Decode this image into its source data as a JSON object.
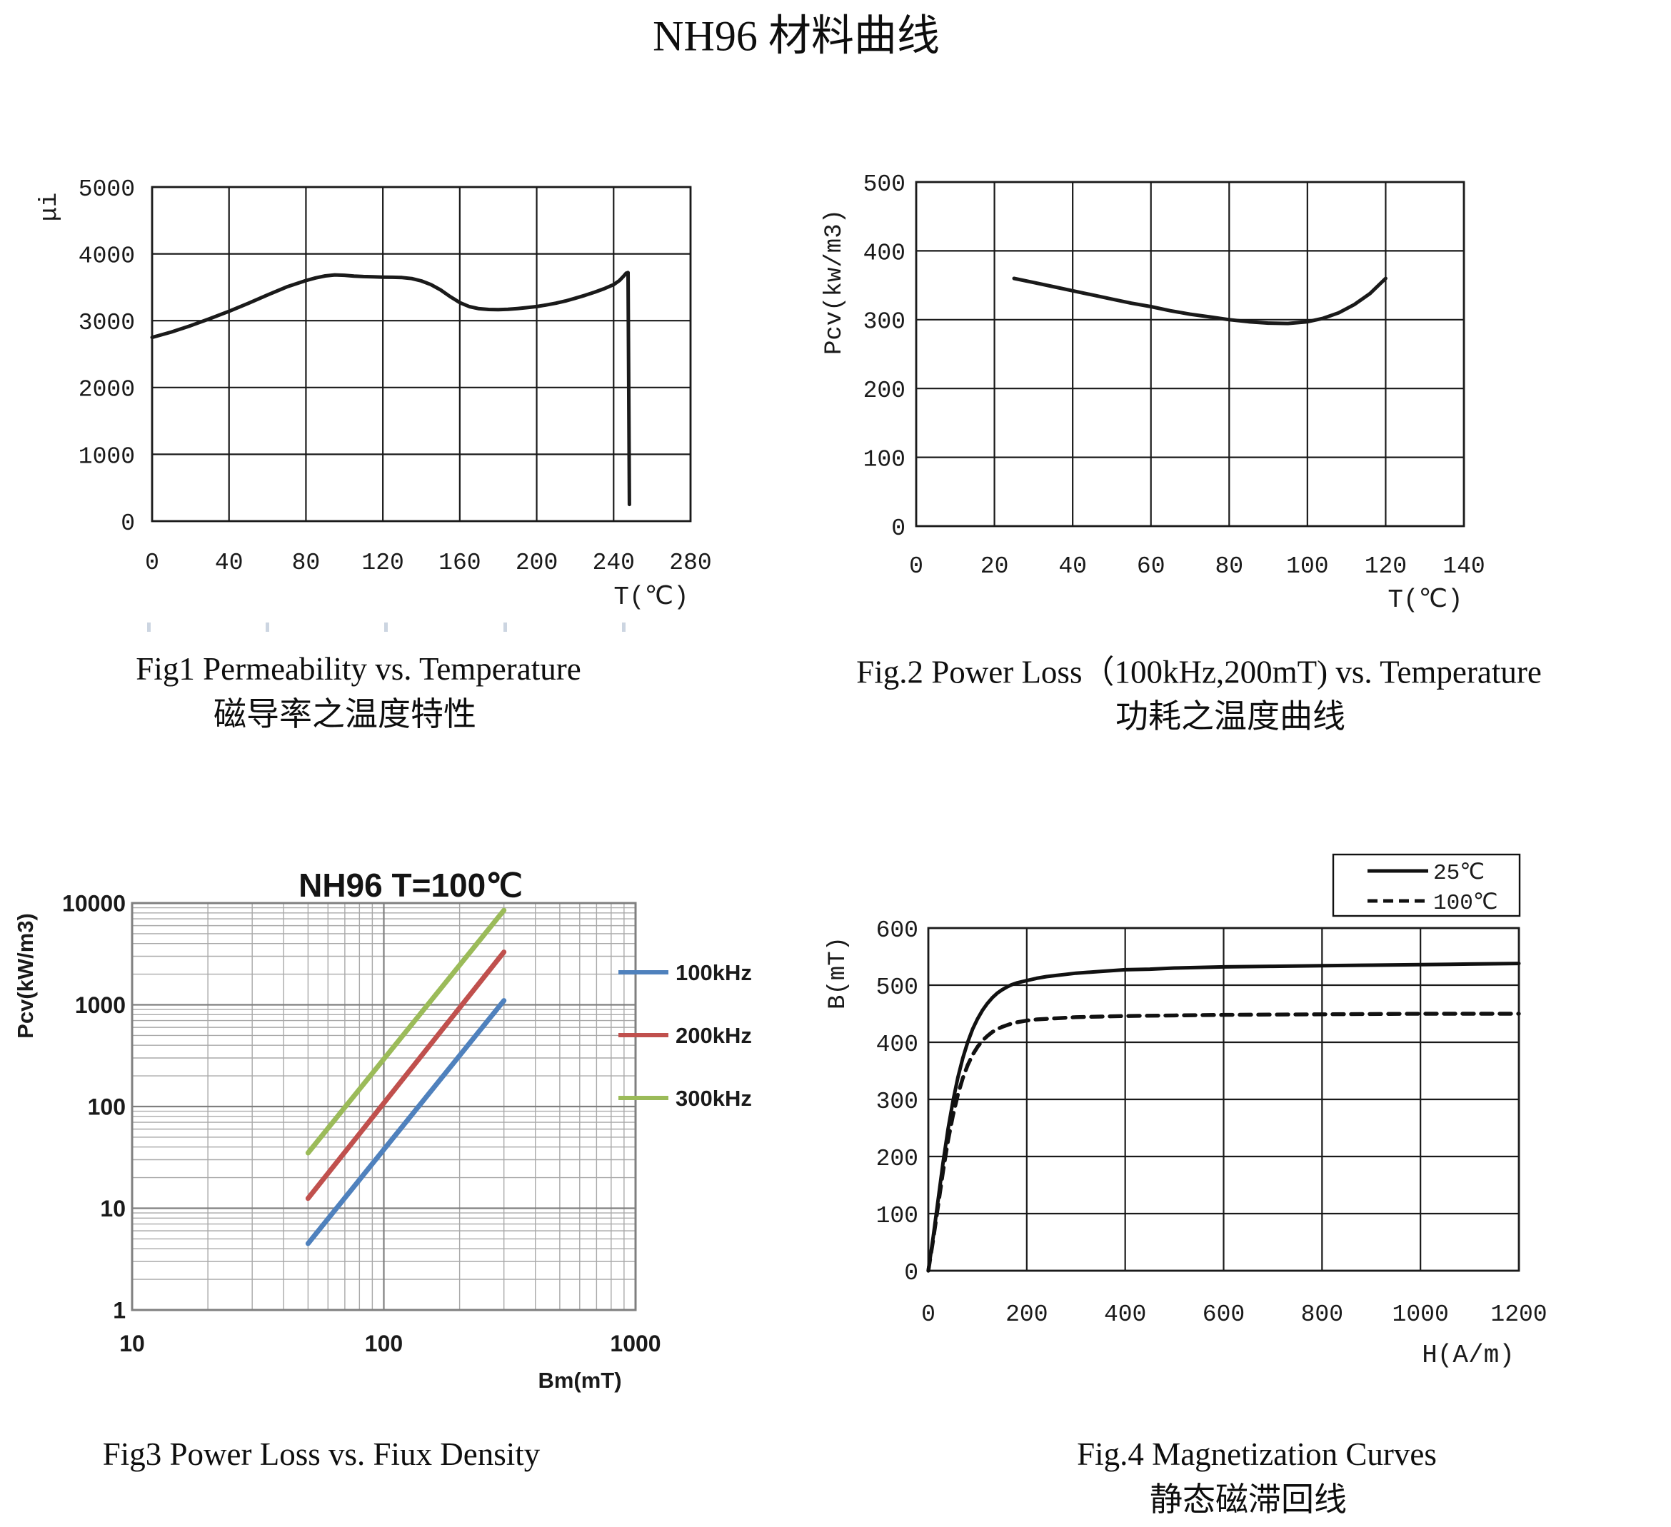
{
  "page_title": "NH96 材料曲线",
  "chart_data": [
    {
      "id": "fig1",
      "type": "line",
      "caption": "Fig1 Permeability vs. Temperature",
      "caption_zh": "磁导率之温度特性",
      "xlabel": "T(℃)",
      "ylabel": "μi",
      "xlim": [
        0,
        280
      ],
      "ylim": [
        0,
        5000
      ],
      "xticks": [
        0,
        40,
        80,
        120,
        160,
        200,
        240,
        280
      ],
      "yticks": [
        0,
        1000,
        2000,
        3000,
        4000,
        5000
      ],
      "grid": true,
      "series": [
        {
          "name": "permeability",
          "color": "#1a1a1a",
          "points": [
            [
              0,
              2750
            ],
            [
              10,
              2830
            ],
            [
              20,
              2925
            ],
            [
              30,
              3030
            ],
            [
              40,
              3140
            ],
            [
              50,
              3260
            ],
            [
              60,
              3385
            ],
            [
              70,
              3505
            ],
            [
              80,
              3600
            ],
            [
              85,
              3640
            ],
            [
              90,
              3670
            ],
            [
              95,
              3685
            ],
            [
              100,
              3680
            ],
            [
              105,
              3668
            ],
            [
              110,
              3660
            ],
            [
              115,
              3656
            ],
            [
              120,
              3652
            ],
            [
              125,
              3650
            ],
            [
              130,
              3645
            ],
            [
              135,
              3630
            ],
            [
              140,
              3595
            ],
            [
              145,
              3540
            ],
            [
              150,
              3460
            ],
            [
              155,
              3360
            ],
            [
              160,
              3270
            ],
            [
              165,
              3210
            ],
            [
              170,
              3180
            ],
            [
              175,
              3168
            ],
            [
              180,
              3165
            ],
            [
              185,
              3170
            ],
            [
              190,
              3182
            ],
            [
              195,
              3195
            ],
            [
              200,
              3212
            ],
            [
              205,
              3235
            ],
            [
              210,
              3262
            ],
            [
              215,
              3295
            ],
            [
              220,
              3335
            ],
            [
              225,
              3378
            ],
            [
              230,
              3425
            ],
            [
              235,
              3478
            ],
            [
              240,
              3540
            ],
            [
              243,
              3600
            ],
            [
              245,
              3660
            ],
            [
              246.5,
              3710
            ],
            [
              247.5,
              3720
            ],
            [
              248.2,
              250
            ]
          ]
        }
      ]
    },
    {
      "id": "fig2",
      "type": "line",
      "caption": "Fig.2 Power Loss（100kHz,200mT) vs. Temperature",
      "caption_zh": "功耗之温度曲线",
      "xlabel": "T(℃)",
      "ylabel": "Pcv(kw/m3)",
      "xlim": [
        0,
        140
      ],
      "ylim": [
        0,
        500
      ],
      "xticks": [
        0,
        20,
        40,
        60,
        80,
        100,
        120,
        140
      ],
      "yticks": [
        0,
        100,
        200,
        300,
        400,
        500
      ],
      "grid": true,
      "series": [
        {
          "name": "power-loss",
          "color": "#1a1a1a",
          "points": [
            [
              25,
              360
            ],
            [
              30,
              354
            ],
            [
              35,
              348
            ],
            [
              40,
              342
            ],
            [
              45,
              336
            ],
            [
              50,
              330
            ],
            [
              55,
              324
            ],
            [
              60,
              319
            ],
            [
              65,
              313
            ],
            [
              70,
              308
            ],
            [
              75,
              304
            ],
            [
              80,
              300
            ],
            [
              85,
              297
            ],
            [
              90,
              295
            ],
            [
              95,
              294.5
            ],
            [
              100,
              297
            ],
            [
              104,
              302
            ],
            [
              108,
              310
            ],
            [
              112,
              322
            ],
            [
              116,
              338
            ],
            [
              120,
              360
            ]
          ]
        }
      ]
    },
    {
      "id": "fig3",
      "type": "line",
      "xscale": "log",
      "yscale": "log",
      "title": "NH96 T=100℃",
      "caption": "Fig3 Power Loss vs. Fiux Density",
      "xlabel": "Bm(mT)",
      "ylabel": "Pcv(kW/m3)",
      "xlim": [
        10,
        1000
      ],
      "ylim": [
        1,
        10000
      ],
      "xticks": [
        10,
        100,
        1000
      ],
      "yticks": [
        1,
        10,
        100,
        1000,
        10000
      ],
      "grid": true,
      "legend_position": "right",
      "series": [
        {
          "name": "100kHz",
          "color": "#4f81bd",
          "points": [
            [
              50,
              4.5
            ],
            [
              300,
              1100
            ]
          ]
        },
        {
          "name": "200kHz",
          "color": "#c0504d",
          "points": [
            [
              50,
              12.5
            ],
            [
              300,
              3300
            ]
          ]
        },
        {
          "name": "300kHz",
          "color": "#9bbb59",
          "points": [
            [
              50,
              35
            ],
            [
              300,
              8500
            ]
          ]
        }
      ]
    },
    {
      "id": "fig4",
      "type": "line",
      "caption": "Fig.4 Magnetization Curves",
      "caption_zh": "静态磁滞回线",
      "xlabel": "H(A/m)",
      "ylabel": "B(mT)",
      "xlim": [
        0,
        1200
      ],
      "ylim": [
        0,
        600
      ],
      "xticks": [
        0,
        200,
        400,
        600,
        800,
        1000,
        1200
      ],
      "yticks": [
        0,
        100,
        200,
        300,
        400,
        500,
        600
      ],
      "grid": true,
      "legend_position": "top-right",
      "series": [
        {
          "name": "25℃",
          "color": "#111111",
          "dash": "solid",
          "points": [
            [
              0,
              0
            ],
            [
              10,
              60
            ],
            [
              20,
              125
            ],
            [
              30,
              190
            ],
            [
              40,
              248
            ],
            [
              50,
              297
            ],
            [
              60,
              338
            ],
            [
              70,
              372
            ],
            [
              80,
              400
            ],
            [
              90,
              423
            ],
            [
              100,
              441
            ],
            [
              110,
              456
            ],
            [
              120,
              468
            ],
            [
              130,
              478
            ],
            [
              140,
              486
            ],
            [
              150,
              492
            ],
            [
              160,
              497
            ],
            [
              170,
              501
            ],
            [
              180,
              504
            ],
            [
              200,
              508
            ],
            [
              220,
              512
            ],
            [
              240,
              515
            ],
            [
              260,
              517
            ],
            [
              280,
              519
            ],
            [
              300,
              521
            ],
            [
              350,
              524
            ],
            [
              400,
              527
            ],
            [
              450,
              528
            ],
            [
              500,
              530
            ],
            [
              600,
              532
            ],
            [
              700,
              533
            ],
            [
              800,
              534
            ],
            [
              900,
              535
            ],
            [
              1000,
              536
            ],
            [
              1100,
              537
            ],
            [
              1200,
              538
            ]
          ]
        },
        {
          "name": "100℃",
          "color": "#111111",
          "dash": "dashed",
          "points": [
            [
              0,
              0
            ],
            [
              10,
              55
            ],
            [
              20,
              115
            ],
            [
              30,
              175
            ],
            [
              40,
              228
            ],
            [
              50,
              272
            ],
            [
              60,
              308
            ],
            [
              70,
              337
            ],
            [
              80,
              360
            ],
            [
              90,
              378
            ],
            [
              100,
              392
            ],
            [
              110,
              403
            ],
            [
              120,
              411
            ],
            [
              130,
              418
            ],
            [
              140,
              423
            ],
            [
              150,
              427
            ],
            [
              160,
              430
            ],
            [
              170,
              433
            ],
            [
              180,
              435
            ],
            [
              200,
              438
            ],
            [
              220,
              440
            ],
            [
              240,
              441
            ],
            [
              260,
              442
            ],
            [
              280,
              443
            ],
            [
              300,
              444
            ],
            [
              350,
              445
            ],
            [
              400,
              446
            ],
            [
              500,
              447
            ],
            [
              600,
              448
            ],
            [
              800,
              449
            ],
            [
              1000,
              450
            ],
            [
              1200,
              450
            ]
          ]
        }
      ]
    }
  ]
}
